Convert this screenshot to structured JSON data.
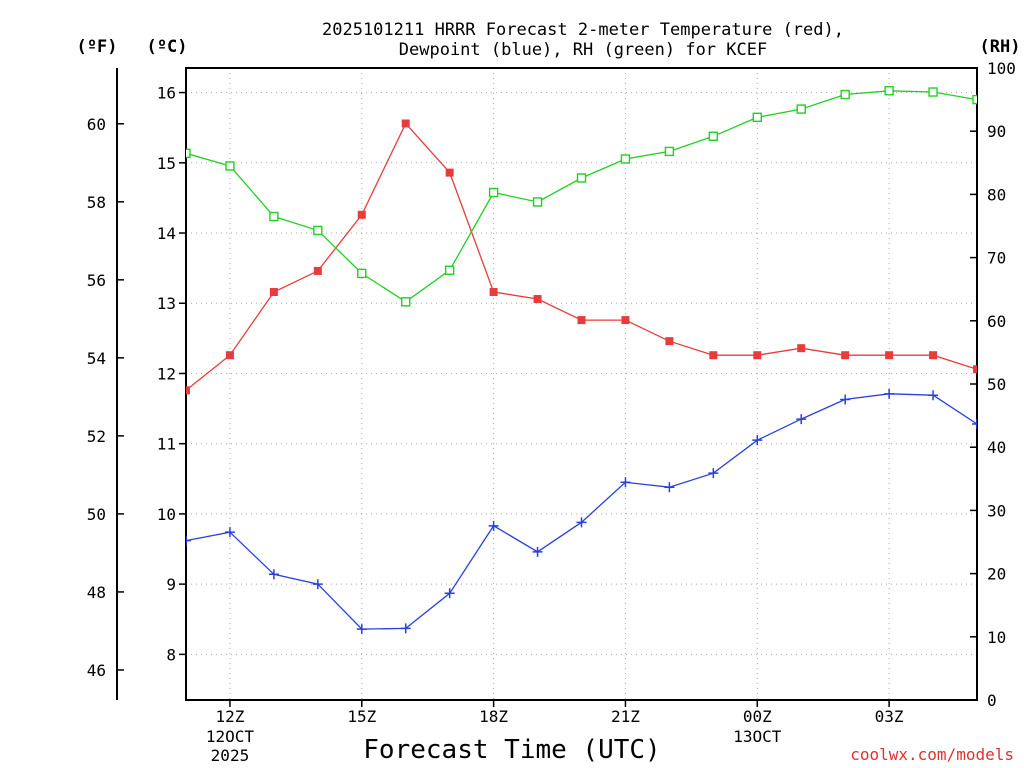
{
  "chart_data": {
    "type": "line",
    "title_line1": "2025101211 HRRR Forecast 2-meter Temperature (red),",
    "title_line2": "Dewpoint (blue), RH (green) for KCEF",
    "xlabel": "Forecast Time (UTC)",
    "credit": "coolwx.com/models",
    "unit_f": "(ºF)",
    "unit_c": "(ºC)",
    "unit_rh": "(RH)",
    "x_hours": [
      11,
      12,
      13,
      14,
      15,
      16,
      17,
      18,
      19,
      20,
      21,
      22,
      23,
      24,
      25,
      26,
      27,
      28,
      29
    ],
    "x_ticks": [
      {
        "hour": 12,
        "label": "12Z",
        "sub1": "12OCT",
        "sub2": "2025"
      },
      {
        "hour": 15,
        "label": "15Z",
        "sub1": "",
        "sub2": ""
      },
      {
        "hour": 18,
        "label": "18Z",
        "sub1": "",
        "sub2": ""
      },
      {
        "hour": 21,
        "label": "21Z",
        "sub1": "",
        "sub2": ""
      },
      {
        "hour": 24,
        "label": "00Z",
        "sub1": "13OCT",
        "sub2": ""
      },
      {
        "hour": 27,
        "label": "03Z",
        "sub1": "",
        "sub2": ""
      }
    ],
    "xlim": [
      11,
      29
    ],
    "ylim_c": [
      7.35,
      16.35
    ],
    "y_ticks_c": [
      8,
      9,
      10,
      11,
      12,
      13,
      14,
      15,
      16
    ],
    "y_ticks_f": [
      46,
      48,
      50,
      52,
      54,
      56,
      58,
      60
    ],
    "ylim_rh": [
      0,
      100
    ],
    "y_ticks_rh": [
      0,
      10,
      20,
      30,
      40,
      50,
      60,
      70,
      80,
      90,
      100
    ],
    "series": [
      {
        "name": "Temperature",
        "axis": "C",
        "color": "#e83c3c",
        "marker": "filled-square",
        "values": [
          11.76,
          12.26,
          13.16,
          13.46,
          14.26,
          15.56,
          14.86,
          13.16,
          13.06,
          12.76,
          12.76,
          12.46,
          12.26,
          12.26,
          12.36,
          12.26,
          12.26,
          12.26,
          12.06
        ]
      },
      {
        "name": "Dewpoint",
        "axis": "C",
        "color": "#2a3fe0",
        "marker": "plus",
        "values": [
          9.62,
          9.74,
          9.14,
          9.0,
          8.36,
          8.37,
          8.87,
          9.83,
          9.46,
          9.88,
          10.45,
          10.38,
          10.58,
          11.05,
          11.35,
          11.63,
          11.71,
          11.69,
          11.28
        ]
      },
      {
        "name": "RH",
        "axis": "RH",
        "color": "#22d022",
        "marker": "open-square",
        "values": [
          86.5,
          84.5,
          76.5,
          74.3,
          67.5,
          63.0,
          68.0,
          80.3,
          78.8,
          82.6,
          85.6,
          86.8,
          89.2,
          92.2,
          93.5,
          95.8,
          96.4,
          96.2,
          95.0
        ]
      }
    ]
  }
}
